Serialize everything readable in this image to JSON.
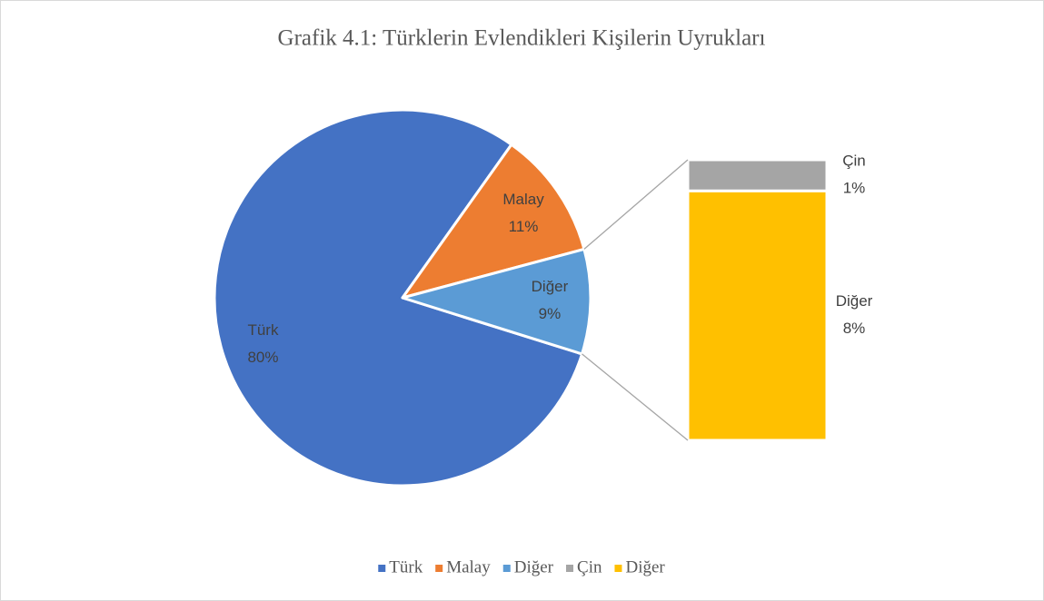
{
  "chart_data": {
    "type": "pie",
    "title": "Grafik 4.1: Türklerin Evlendikleri Kişilerin Uyrukları",
    "categories": [
      "Türk",
      "Malay",
      "Diğer"
    ],
    "values": [
      80,
      11,
      9
    ],
    "value_labels": [
      "80%",
      "11%",
      "9%"
    ],
    "colors": [
      "#4472c4",
      "#ed7d31",
      "#5b9bd5"
    ],
    "breakdown": {
      "type": "bar",
      "categories": [
        "Çin",
        "Diğer"
      ],
      "values": [
        1,
        8
      ],
      "value_labels": [
        "1%",
        "8%"
      ],
      "colors": [
        "#a5a5a5",
        "#ffc000"
      ]
    },
    "legend": "bottom"
  }
}
